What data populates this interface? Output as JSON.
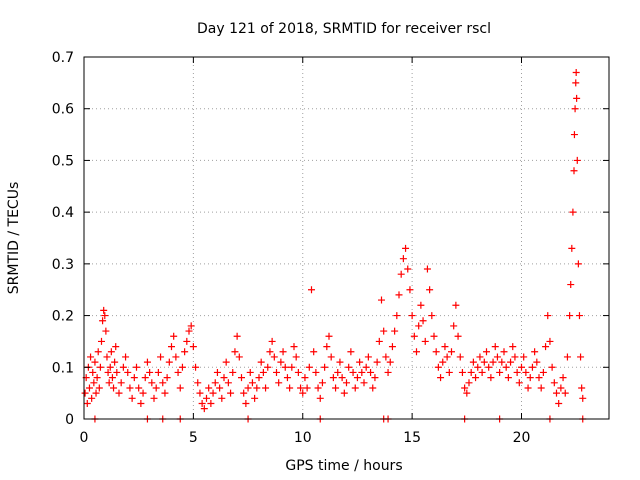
{
  "chart_data": {
    "type": "scatter",
    "title": "Day 121 of 2018, SRMTID for receiver rscl",
    "xlabel": "GPS time / hours",
    "ylabel": "SRMTID / TECUs",
    "xlim": [
      0,
      24
    ],
    "ylim": [
      0,
      0.7
    ],
    "xticks": [
      0,
      5,
      10,
      15,
      20
    ],
    "yticks": [
      0,
      0.1,
      0.2,
      0.3,
      0.4,
      0.5,
      0.6,
      0.7
    ],
    "xtick_labels": [
      "0",
      "5",
      "10",
      "15",
      "20"
    ],
    "ytick_labels": [
      "0",
      "0.1",
      "0.2",
      "0.3",
      "0.4",
      "0.5",
      "0.6",
      "0.7"
    ],
    "grid": true,
    "marker": "+",
    "color": "#ff0000",
    "series": [
      {
        "name": "rscl",
        "points": [
          [
            0.05,
            0.05
          ],
          [
            0.1,
            0.08
          ],
          [
            0.15,
            0.03
          ],
          [
            0.2,
            0.1
          ],
          [
            0.25,
            0.06
          ],
          [
            0.3,
            0.12
          ],
          [
            0.35,
            0.04
          ],
          [
            0.4,
            0.09
          ],
          [
            0.45,
            0.07
          ],
          [
            0.5,
            0.11
          ],
          [
            0.55,
            0.05
          ],
          [
            0.6,
            0.08
          ],
          [
            0.65,
            0.13
          ],
          [
            0.7,
            0.06
          ],
          [
            0.75,
            0.1
          ],
          [
            0.8,
            0.15
          ],
          [
            0.85,
            0.19
          ],
          [
            0.9,
            0.21
          ],
          [
            0.95,
            0.2
          ],
          [
            1.0,
            0.17
          ],
          [
            1.05,
            0.12
          ],
          [
            1.1,
            0.09
          ],
          [
            1.15,
            0.07
          ],
          [
            1.2,
            0.1
          ],
          [
            1.25,
            0.13
          ],
          [
            1.3,
            0.08
          ],
          [
            1.35,
            0.06
          ],
          [
            1.4,
            0.11
          ],
          [
            1.45,
            0.14
          ],
          [
            1.5,
            0.09
          ],
          [
            1.6,
            0.05
          ],
          [
            1.7,
            0.07
          ],
          [
            1.8,
            0.1
          ],
          [
            1.9,
            0.12
          ],
          [
            2.0,
            0.09
          ],
          [
            2.1,
            0.06
          ],
          [
            2.2,
            0.04
          ],
          [
            2.3,
            0.08
          ],
          [
            2.4,
            0.1
          ],
          [
            2.5,
            0.06
          ],
          [
            2.6,
            0.03
          ],
          [
            2.7,
            0.05
          ],
          [
            2.8,
            0.08
          ],
          [
            2.9,
            0.11
          ],
          [
            3.0,
            0.09
          ],
          [
            3.1,
            0.07
          ],
          [
            3.2,
            0.04
          ],
          [
            3.3,
            0.06
          ],
          [
            3.4,
            0.09
          ],
          [
            3.5,
            0.12
          ],
          [
            3.6,
            0.07
          ],
          [
            3.7,
            0.05
          ],
          [
            3.8,
            0.08
          ],
          [
            3.9,
            0.11
          ],
          [
            4.0,
            0.14
          ],
          [
            4.1,
            0.16
          ],
          [
            4.2,
            0.12
          ],
          [
            4.3,
            0.09
          ],
          [
            4.4,
            0.06
          ],
          [
            4.5,
            0.1
          ],
          [
            4.6,
            0.13
          ],
          [
            4.7,
            0.15
          ],
          [
            4.8,
            0.17
          ],
          [
            4.9,
            0.18
          ],
          [
            5.0,
            0.14
          ],
          [
            5.1,
            0.1
          ],
          [
            5.2,
            0.07
          ],
          [
            5.3,
            0.05
          ],
          [
            5.4,
            0.03
          ],
          [
            5.5,
            0.02
          ],
          [
            5.6,
            0.04
          ],
          [
            5.7,
            0.06
          ],
          [
            5.8,
            0.03
          ],
          [
            5.9,
            0.05
          ],
          [
            6.0,
            0.07
          ],
          [
            6.1,
            0.09
          ],
          [
            6.2,
            0.06
          ],
          [
            6.3,
            0.04
          ],
          [
            6.4,
            0.08
          ],
          [
            6.5,
            0.11
          ],
          [
            6.6,
            0.07
          ],
          [
            6.7,
            0.05
          ],
          [
            6.8,
            0.09
          ],
          [
            6.9,
            0.13
          ],
          [
            7.0,
            0.16
          ],
          [
            7.1,
            0.12
          ],
          [
            7.2,
            0.08
          ],
          [
            7.3,
            0.05
          ],
          [
            7.4,
            0.03
          ],
          [
            7.5,
            0.06
          ],
          [
            7.6,
            0.09
          ],
          [
            7.7,
            0.07
          ],
          [
            7.8,
            0.04
          ],
          [
            7.9,
            0.06
          ],
          [
            8.0,
            0.08
          ],
          [
            8.1,
            0.11
          ],
          [
            8.2,
            0.09
          ],
          [
            8.3,
            0.06
          ],
          [
            8.4,
            0.1
          ],
          [
            8.5,
            0.13
          ],
          [
            8.6,
            0.15
          ],
          [
            8.7,
            0.12
          ],
          [
            8.8,
            0.09
          ],
          [
            8.9,
            0.07
          ],
          [
            9.0,
            0.11
          ],
          [
            9.1,
            0.13
          ],
          [
            9.2,
            0.1
          ],
          [
            9.3,
            0.08
          ],
          [
            9.4,
            0.06
          ],
          [
            9.5,
            0.1
          ],
          [
            9.6,
            0.14
          ],
          [
            9.7,
            0.12
          ],
          [
            9.8,
            0.09
          ],
          [
            9.9,
            0.06
          ],
          [
            10.0,
            0.05
          ],
          [
            10.1,
            0.08
          ],
          [
            10.2,
            0.06
          ],
          [
            10.3,
            0.1
          ],
          [
            10.4,
            0.25
          ],
          [
            10.5,
            0.13
          ],
          [
            10.6,
            0.09
          ],
          [
            10.7,
            0.06
          ],
          [
            10.8,
            0.04
          ],
          [
            10.9,
            0.07
          ],
          [
            11.0,
            0.1
          ],
          [
            11.1,
            0.14
          ],
          [
            11.2,
            0.16
          ],
          [
            11.3,
            0.12
          ],
          [
            11.4,
            0.08
          ],
          [
            11.5,
            0.06
          ],
          [
            11.6,
            0.09
          ],
          [
            11.7,
            0.11
          ],
          [
            11.8,
            0.08
          ],
          [
            11.9,
            0.05
          ],
          [
            12.0,
            0.07
          ],
          [
            12.1,
            0.1
          ],
          [
            12.2,
            0.13
          ],
          [
            12.3,
            0.09
          ],
          [
            12.4,
            0.06
          ],
          [
            12.5,
            0.08
          ],
          [
            12.6,
            0.11
          ],
          [
            12.7,
            0.09
          ],
          [
            12.8,
            0.07
          ],
          [
            12.9,
            0.1
          ],
          [
            13.0,
            0.12
          ],
          [
            13.1,
            0.09
          ],
          [
            13.2,
            0.06
          ],
          [
            13.3,
            0.08
          ],
          [
            13.4,
            0.11
          ],
          [
            13.5,
            0.15
          ],
          [
            13.6,
            0.23
          ],
          [
            13.7,
            0.17
          ],
          [
            13.8,
            0.12
          ],
          [
            13.9,
            0.09
          ],
          [
            14.0,
            0.11
          ],
          [
            14.1,
            0.14
          ],
          [
            14.2,
            0.17
          ],
          [
            14.3,
            0.2
          ],
          [
            14.4,
            0.24
          ],
          [
            14.5,
            0.28
          ],
          [
            14.6,
            0.31
          ],
          [
            14.7,
            0.33
          ],
          [
            14.8,
            0.29
          ],
          [
            14.9,
            0.25
          ],
          [
            15.0,
            0.2
          ],
          [
            15.1,
            0.16
          ],
          [
            15.2,
            0.13
          ],
          [
            15.3,
            0.18
          ],
          [
            15.4,
            0.22
          ],
          [
            15.5,
            0.19
          ],
          [
            15.6,
            0.15
          ],
          [
            15.7,
            0.29
          ],
          [
            15.8,
            0.25
          ],
          [
            15.9,
            0.2
          ],
          [
            16.0,
            0.16
          ],
          [
            16.1,
            0.13
          ],
          [
            16.2,
            0.1
          ],
          [
            16.3,
            0.08
          ],
          [
            16.4,
            0.11
          ],
          [
            16.5,
            0.14
          ],
          [
            16.6,
            0.12
          ],
          [
            16.7,
            0.09
          ],
          [
            16.8,
            0.13
          ],
          [
            16.9,
            0.18
          ],
          [
            17.0,
            0.22
          ],
          [
            17.1,
            0.16
          ],
          [
            17.2,
            0.12
          ],
          [
            17.3,
            0.09
          ],
          [
            17.4,
            0.06
          ],
          [
            17.5,
            0.05
          ],
          [
            17.6,
            0.07
          ],
          [
            17.7,
            0.09
          ],
          [
            17.8,
            0.11
          ],
          [
            17.9,
            0.08
          ],
          [
            18.0,
            0.1
          ],
          [
            18.1,
            0.12
          ],
          [
            18.2,
            0.09
          ],
          [
            18.3,
            0.11
          ],
          [
            18.4,
            0.13
          ],
          [
            18.5,
            0.1
          ],
          [
            18.6,
            0.08
          ],
          [
            18.7,
            0.11
          ],
          [
            18.8,
            0.14
          ],
          [
            18.9,
            0.12
          ],
          [
            19.0,
            0.09
          ],
          [
            19.1,
            0.11
          ],
          [
            19.2,
            0.13
          ],
          [
            19.3,
            0.1
          ],
          [
            19.4,
            0.08
          ],
          [
            19.5,
            0.11
          ],
          [
            19.6,
            0.14
          ],
          [
            19.7,
            0.12
          ],
          [
            19.8,
            0.09
          ],
          [
            19.9,
            0.07
          ],
          [
            20.0,
            0.1
          ],
          [
            20.1,
            0.12
          ],
          [
            20.2,
            0.09
          ],
          [
            20.3,
            0.06
          ],
          [
            20.4,
            0.08
          ],
          [
            20.5,
            0.1
          ],
          [
            20.6,
            0.13
          ],
          [
            20.7,
            0.11
          ],
          [
            20.8,
            0.08
          ],
          [
            20.9,
            0.06
          ],
          [
            21.0,
            0.09
          ],
          [
            21.1,
            0.14
          ],
          [
            21.2,
            0.2
          ],
          [
            21.3,
            0.15
          ],
          [
            21.4,
            0.1
          ],
          [
            21.5,
            0.07
          ],
          [
            21.6,
            0.05
          ],
          [
            21.7,
            0.03
          ],
          [
            21.8,
            0.06
          ],
          [
            21.9,
            0.08
          ],
          [
            22.0,
            0.05
          ],
          [
            22.1,
            0.12
          ],
          [
            22.2,
            0.2
          ],
          [
            22.25,
            0.26
          ],
          [
            22.3,
            0.33
          ],
          [
            22.35,
            0.4
          ],
          [
            22.4,
            0.48
          ],
          [
            22.42,
            0.55
          ],
          [
            22.45,
            0.6
          ],
          [
            22.48,
            0.65
          ],
          [
            22.5,
            0.67
          ],
          [
            22.52,
            0.62
          ],
          [
            22.55,
            0.5
          ],
          [
            22.6,
            0.3
          ],
          [
            22.65,
            0.2
          ],
          [
            22.7,
            0.12
          ],
          [
            22.75,
            0.06
          ],
          [
            22.8,
            0.04
          ],
          [
            0.5,
            0.0
          ],
          [
            2.9,
            0.0
          ],
          [
            3.6,
            0.0
          ],
          [
            4.4,
            0.0
          ],
          [
            7.5,
            0.0
          ],
          [
            10.8,
            0.0
          ],
          [
            13.7,
            0.0
          ],
          [
            13.9,
            0.0
          ],
          [
            17.4,
            0.0
          ],
          [
            19.0,
            0.0
          ],
          [
            21.3,
            0.0
          ],
          [
            22.8,
            0.0
          ]
        ]
      }
    ]
  }
}
